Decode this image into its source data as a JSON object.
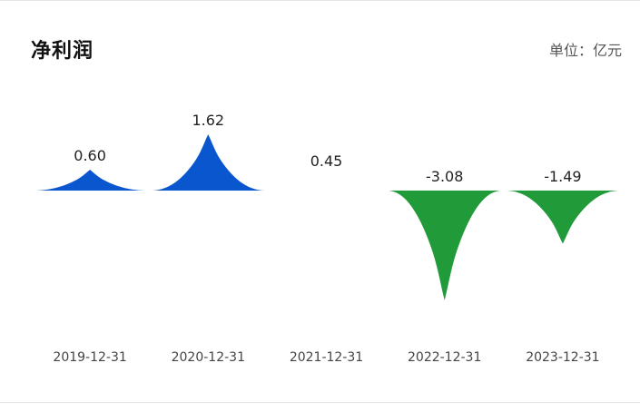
{
  "header": {
    "title": "净利润",
    "unit": "单位：亿元"
  },
  "colors": {
    "positive": "#0a56cf",
    "negative": "#219a3a"
  },
  "chart_data": {
    "type": "bar",
    "title": "净利润",
    "unit_label": "单位：亿元",
    "categories": [
      "2019-12-31",
      "2020-12-31",
      "2021-12-31",
      "2022-12-31",
      "2023-12-31"
    ],
    "values": [
      0.6,
      1.62,
      0.45,
      -3.08,
      -1.49
    ],
    "value_labels": [
      "0.60",
      "1.62",
      "0.45",
      "-3.08",
      "-1.49"
    ],
    "ylim": [
      -3.08,
      1.62
    ],
    "grid": false,
    "legend": "none"
  }
}
